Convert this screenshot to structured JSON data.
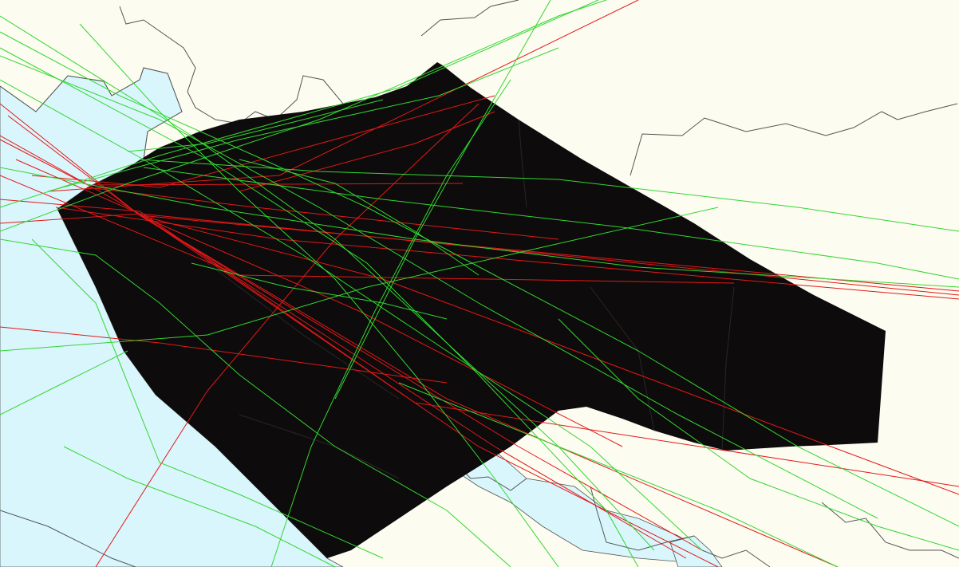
{
  "map": {
    "colors": {
      "land": "#fdfcf0",
      "water": "#d9f6fc",
      "sector": "#0d0b0b",
      "sector_edges": "#2a2626",
      "boundary": "#555555",
      "flight_red": "#e41818",
      "flight_green": "#33d633"
    },
    "layers": [
      "land",
      "water",
      "airspace-sector",
      "flight-tracks-red",
      "flight-tracks-green"
    ]
  }
}
